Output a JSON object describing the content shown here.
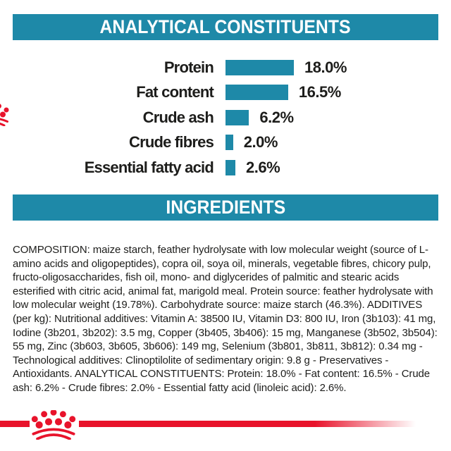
{
  "colors": {
    "teal": "#1E89A8",
    "red": "#E8132B",
    "text": "#1d1d1b",
    "header_text": "#ffffff"
  },
  "sections": {
    "analytical": {
      "title": "ANALYTICAL CONSTITUENTS"
    },
    "ingredients": {
      "title": "INGREDIENTS"
    }
  },
  "chart_data": {
    "type": "bar",
    "orientation": "horizontal",
    "title": "ANALYTICAL CONSTITUENTS",
    "categories": [
      "Protein",
      "Fat content",
      "Crude ash",
      "Crude fibres",
      "Essential fatty acid"
    ],
    "values": [
      18.0,
      16.5,
      6.2,
      2.0,
      2.6
    ],
    "value_labels": [
      "18.0%",
      "16.5%",
      "6.2%",
      "2.0%",
      "2.6%"
    ],
    "unit": "%",
    "xlim": [
      0,
      20
    ],
    "grid": false,
    "legend": false,
    "bar_color": "#1E89A8"
  },
  "composition": {
    "text": "COMPOSITION: maize starch, feather hydrolysate with low molecular weight (source of L-amino acids and oligopeptides), copra oil, soya oil, minerals, vegetable fibres, chicory pulp, fructo-oligosaccharides, fish oil, mono- and diglycerides of palmitic and stearic acids esterified with citric acid, animal fat, marigold meal. Protein source: feather hydrolysate with low molecular weight (19.78%). Carbohydrate source: maize starch (46.3%). ADDITIVES (per kg): Nutritional additives: Vitamin A: 38500 IU, Vitamin D3: 800 IU, Iron (3b103): 41 mg, Iodine (3b201, 3b202): 3.5 mg, Copper (3b405, 3b406): 15 mg, Manganese (3b502, 3b504): 55 mg, Zinc (3b603, 3b605, 3b606): 149 mg, Selenium (3b801, 3b811, 3b812): 0.34 mg - Technological additives: Clinoptilolite of sedimentary origin: 9.8 g - Preservatives - Antioxidants. ANALYTICAL CONSTITUENTS: Protein: 18.0% - Fat content: 16.5% - Crude ash: 6.2% - Crude fibres: 2.0% - Essential fatty acid (linoleic acid): 2.6%."
  },
  "branding": {
    "logo": "royal-canin-crown"
  }
}
